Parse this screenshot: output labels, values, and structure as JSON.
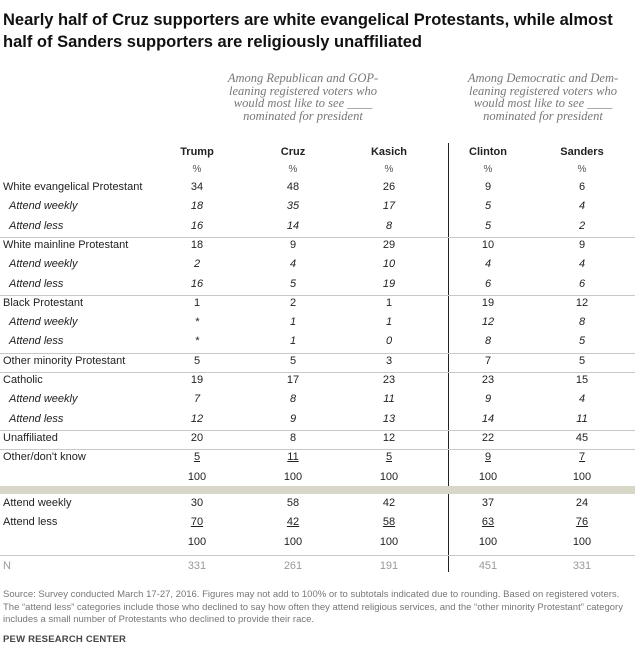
{
  "title": "Nearly half of Cruz supporters are white evangelical Protestants, while almost half of Sanders supporters are religiously unaffiliated",
  "groups": {
    "gop": [
      "Among Republican and GOP-",
      "leaning registered voters who",
      "would most like to see ____",
      "nominated for president"
    ],
    "dem": [
      "Among Democratic and Dem-",
      "leaning registered voters who",
      "would most like to see ____",
      "nominated for president"
    ]
  },
  "columns": [
    "Trump",
    "Cruz",
    "Kasich",
    "Clinton",
    "Sanders"
  ],
  "pct_symbol": "%",
  "rows": [
    {
      "label": "White evangelical Protestant",
      "sub": false,
      "values": [
        "34",
        "48",
        "26",
        "9",
        "6"
      ]
    },
    {
      "label": "Attend weekly",
      "sub": true,
      "values": [
        "18",
        "35",
        "17",
        "5",
        "4"
      ]
    },
    {
      "label": "Attend less",
      "sub": true,
      "values": [
        "16",
        "14",
        "8",
        "5",
        "2"
      ]
    },
    {
      "label": "White mainline Protestant",
      "sub": false,
      "values": [
        "18",
        "9",
        "29",
        "10",
        "9"
      ]
    },
    {
      "label": "Attend weekly",
      "sub": true,
      "values": [
        "2",
        "4",
        "10",
        "4",
        "4"
      ]
    },
    {
      "label": "Attend less",
      "sub": true,
      "values": [
        "16",
        "5",
        "19",
        "6",
        "6"
      ]
    },
    {
      "label": "Black Protestant",
      "sub": false,
      "values": [
        "1",
        "2",
        "1",
        "19",
        "12"
      ]
    },
    {
      "label": "Attend weekly",
      "sub": true,
      "values": [
        "*",
        "1",
        "1",
        "12",
        "8"
      ]
    },
    {
      "label": "Attend less",
      "sub": true,
      "values": [
        "*",
        "1",
        "0",
        "8",
        "5"
      ]
    },
    {
      "label": "Other minority Protestant",
      "sub": false,
      "values": [
        "5",
        "5",
        "3",
        "7",
        "5"
      ]
    },
    {
      "label": "Catholic",
      "sub": false,
      "values": [
        "19",
        "17",
        "23",
        "23",
        "15"
      ]
    },
    {
      "label": "Attend weekly",
      "sub": true,
      "values": [
        "7",
        "8",
        "11",
        "9",
        "4"
      ]
    },
    {
      "label": "Attend less",
      "sub": true,
      "values": [
        "12",
        "9",
        "13",
        "14",
        "11"
      ]
    },
    {
      "label": "Unaffiliated",
      "sub": false,
      "values": [
        "20",
        "8",
        "12",
        "22",
        "45"
      ]
    },
    {
      "label": "Other/don't know",
      "sub": false,
      "values": [
        "5",
        "11",
        "5",
        "9",
        "7"
      ],
      "underline": true
    },
    {
      "label": "",
      "sub": false,
      "values": [
        "100",
        "100",
        "100",
        "100",
        "100"
      ]
    }
  ],
  "attend_rows": [
    {
      "label": "Attend weekly",
      "values": [
        "30",
        "58",
        "42",
        "37",
        "24"
      ]
    },
    {
      "label": "Attend less",
      "values": [
        "70",
        "42",
        "58",
        "63",
        "76"
      ],
      "underline": true
    },
    {
      "label": "",
      "values": [
        "100",
        "100",
        "100",
        "100",
        "100"
      ]
    }
  ],
  "n_row": {
    "label": "N",
    "values": [
      "331",
      "261",
      "191",
      "451",
      "331"
    ]
  },
  "source": "Source: Survey conducted March 17-27, 2016. Figures may not add to 100% or to subtotals indicated due to rounding. Based on registered voters. The “attend less” categories include those who declined to say how often they attend religious services, and the “other minority Protestant” category includes a small number of Protestants who declined to provide their race.",
  "brand": "PEW RESEARCH CENTER"
}
